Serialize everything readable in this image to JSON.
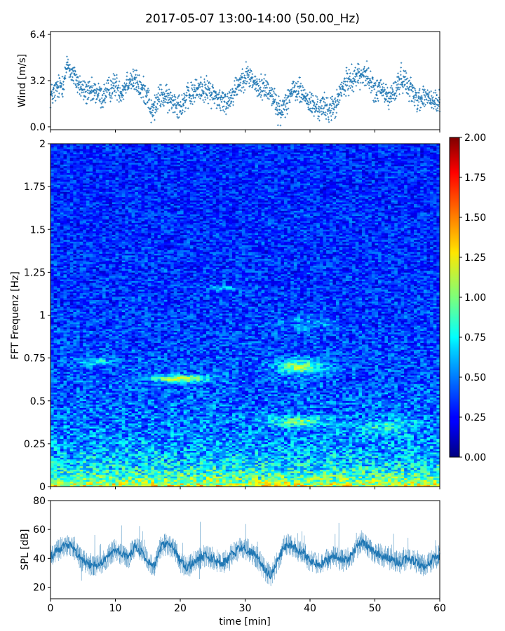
{
  "figure_title": "2017-05-07 13:00-14:00 (50.00_Hz)",
  "chart_data": [
    {
      "panel": "wind",
      "type": "scatter",
      "ylabel": "Wind [m/s]",
      "ylim": [
        -0.2,
        6.6
      ],
      "yticks": [
        0.0,
        3.2,
        6.4
      ],
      "yticklabels": [
        "0.0",
        "3.2",
        "6.4"
      ],
      "xlim": [
        0,
        60
      ],
      "color": "#1f77b4",
      "series": [
        {
          "x": [
            0,
            1,
            2,
            2.7,
            3,
            3.5,
            4,
            5,
            6,
            7,
            8,
            9,
            10,
            11,
            12,
            13,
            14,
            15,
            15.5,
            16,
            17,
            18,
            19,
            20,
            21,
            22,
            23,
            24,
            25,
            26,
            27,
            28,
            29,
            30,
            31,
            32,
            33,
            34,
            35,
            35.5,
            36,
            37,
            38,
            39,
            40,
            41,
            42,
            43,
            44,
            45,
            46,
            47,
            48,
            48.5,
            49,
            50,
            51,
            52,
            53,
            54,
            55,
            56,
            57,
            58,
            59,
            60
          ],
          "y": [
            2.1,
            2.6,
            3.1,
            4.4,
            3.9,
            3.6,
            3.2,
            2.5,
            2.3,
            2.4,
            2.0,
            2.6,
            2.9,
            2.4,
            3.3,
            3.2,
            2.6,
            2.3,
            1.0,
            1.3,
            2.2,
            1.9,
            1.8,
            1.5,
            2.0,
            2.3,
            2.7,
            2.5,
            2.3,
            1.9,
            1.6,
            2.3,
            3.0,
            3.6,
            3.4,
            2.6,
            2.8,
            2.4,
            1.3,
            0.9,
            1.6,
            2.3,
            2.6,
            2.2,
            1.6,
            1.3,
            1.4,
            1.2,
            1.5,
            2.7,
            3.2,
            3.5,
            3.6,
            3.7,
            3.3,
            2.5,
            2.6,
            2.0,
            2.4,
            3.4,
            3.1,
            2.2,
            1.9,
            2.1,
            1.7,
            1.6
          ]
        }
      ]
    },
    {
      "panel": "spectrogram",
      "type": "heatmap",
      "ylabel": "FFT Frequenz [Hz]",
      "ylim": [
        0,
        2
      ],
      "yticks": [
        0,
        0.25,
        0.5,
        0.75,
        1,
        1.25,
        1.5,
        1.75,
        2
      ],
      "yticklabels": [
        "0",
        "0.25",
        "0.5",
        "0.75",
        "1",
        "1.25",
        "1.5",
        "1.75",
        "2"
      ],
      "xlim": [
        0,
        60
      ],
      "colormap": "jet",
      "colorbar": {
        "range": [
          0.0,
          2.0
        ],
        "ticks": [
          0.0,
          0.25,
          0.5,
          0.75,
          1.0,
          1.25,
          1.5,
          1.75,
          2.0
        ],
        "ticklabels": [
          "0.00",
          "0.25",
          "0.50",
          "0.75",
          "1.00",
          "1.25",
          "1.50",
          "1.75",
          "2.00"
        ]
      }
    },
    {
      "panel": "spl",
      "type": "line",
      "ylabel": "SPL [dB]",
      "xlabel": "time [min]",
      "ylim": [
        12,
        80
      ],
      "yticks": [
        20,
        40,
        60,
        80
      ],
      "yticklabels": [
        "20",
        "40",
        "60",
        "80"
      ],
      "xlim": [
        0,
        60
      ],
      "xticks": [
        0,
        10,
        20,
        30,
        40,
        50,
        60
      ],
      "xticklabels": [
        "0",
        "10",
        "20",
        "30",
        "40",
        "50",
        "60"
      ],
      "color": "#1f77b4",
      "series": [
        {
          "x": [
            0,
            1,
            2,
            3,
            4,
            5,
            6,
            7,
            8,
            9,
            10,
            11,
            12,
            13,
            14,
            15,
            16,
            17,
            18,
            19,
            20,
            21,
            22,
            23,
            24,
            25,
            26,
            27,
            28,
            29,
            30,
            31,
            32,
            33,
            34,
            35,
            36,
            37,
            38,
            39,
            40,
            41,
            42,
            43,
            44,
            45,
            46,
            47,
            48,
            49,
            50,
            51,
            52,
            53,
            54,
            55,
            56,
            57,
            58,
            59,
            60
          ],
          "y": [
            42,
            45,
            48,
            50,
            44,
            38,
            36,
            35,
            37,
            42,
            46,
            43,
            40,
            48,
            45,
            38,
            34,
            48,
            50,
            47,
            38,
            34,
            36,
            40,
            42,
            40,
            36,
            38,
            43,
            46,
            47,
            44,
            40,
            32,
            28,
            38,
            48,
            50,
            46,
            44,
            38,
            36,
            37,
            40,
            42,
            38,
            40,
            46,
            52,
            48,
            44,
            42,
            40,
            38,
            37,
            40,
            38,
            36,
            35,
            40,
            42
          ]
        }
      ]
    }
  ]
}
